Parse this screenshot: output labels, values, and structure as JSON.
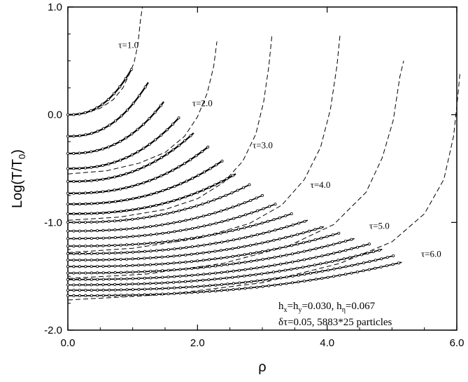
{
  "chart_data": {
    "type": "scatter",
    "title": "",
    "xlabel": "ρ",
    "ylabel_main": "Log(T/T",
    "ylabel_sub": "0",
    "ylabel_close": ")",
    "xlim": [
      0.0,
      6.0
    ],
    "ylim": [
      -2.0,
      1.0
    ],
    "xticks": [
      "0.0",
      "2.0",
      "4.0",
      "6.0"
    ],
    "yticks": [
      "1.0",
      "0.0",
      "-1.0",
      "-2.0"
    ],
    "grid": false,
    "parameters": {
      "line1_a": "h",
      "line1_a_sub": "x",
      "line1_b": "=h",
      "line1_b_sub": "y",
      "line1_c": "=0.030, h",
      "line1_c_sub": "η",
      "line1_d": "=0.067",
      "line2": "δτ=0.05, 5883*25 particles"
    },
    "series": [
      {
        "name": "τ=1.0",
        "label": "τ=1.0",
        "analytic": true,
        "points": [
          [
            0,
            0.0
          ],
          [
            0.3,
            0.02
          ],
          [
            0.5,
            0.06
          ],
          [
            0.7,
            0.14
          ],
          [
            0.85,
            0.25
          ],
          [
            0.95,
            0.38
          ],
          [
            1.02,
            0.48
          ],
          [
            1.08,
            0.65
          ],
          [
            1.12,
            0.88
          ],
          [
            1.15,
            1.0
          ]
        ]
      },
      {
        "name": "τ=2.0",
        "label": "τ=2.0",
        "analytic": true,
        "points": [
          [
            0,
            -0.55
          ],
          [
            0.6,
            -0.52
          ],
          [
            1.1,
            -0.45
          ],
          [
            1.5,
            -0.35
          ],
          [
            1.8,
            -0.2
          ],
          [
            2.0,
            -0.02
          ],
          [
            2.15,
            0.2
          ],
          [
            2.25,
            0.45
          ],
          [
            2.3,
            0.68
          ]
        ]
      },
      {
        "name": "τ=3.0",
        "label": "τ=3.0",
        "analytic": true,
        "points": [
          [
            0,
            -0.98
          ],
          [
            0.8,
            -0.95
          ],
          [
            1.5,
            -0.88
          ],
          [
            2.0,
            -0.78
          ],
          [
            2.4,
            -0.63
          ],
          [
            2.7,
            -0.43
          ],
          [
            2.9,
            -0.18
          ],
          [
            3.02,
            0.12
          ],
          [
            3.1,
            0.45
          ],
          [
            3.15,
            0.75
          ]
        ]
      },
      {
        "name": "τ=4.0",
        "label": "τ=4.0",
        "analytic": true,
        "points": [
          [
            0,
            -1.28
          ],
          [
            1.0,
            -1.24
          ],
          [
            2.0,
            -1.15
          ],
          [
            2.8,
            -1.01
          ],
          [
            3.3,
            -0.84
          ],
          [
            3.65,
            -0.6
          ],
          [
            3.9,
            -0.3
          ],
          [
            4.05,
            0.05
          ],
          [
            4.15,
            0.45
          ],
          [
            4.2,
            0.75
          ]
        ]
      },
      {
        "name": "τ=5.0",
        "label": "τ=5.0",
        "analytic": true,
        "points": [
          [
            0,
            -1.52
          ],
          [
            1.2,
            -1.48
          ],
          [
            2.4,
            -1.38
          ],
          [
            3.4,
            -1.22
          ],
          [
            4.1,
            -1.02
          ],
          [
            4.6,
            -0.72
          ],
          [
            4.85,
            -0.4
          ],
          [
            5.02,
            -0.05
          ],
          [
            5.12,
            0.35
          ],
          [
            5.18,
            0.5
          ]
        ]
      },
      {
        "name": "τ=6.0",
        "label": "τ=6.0",
        "analytic": true,
        "points": [
          [
            0,
            -1.72
          ],
          [
            1.5,
            -1.67
          ],
          [
            3.0,
            -1.56
          ],
          [
            4.2,
            -1.38
          ],
          [
            5.0,
            -1.18
          ],
          [
            5.5,
            -0.92
          ],
          [
            5.8,
            -0.6
          ],
          [
            5.95,
            -0.2
          ],
          [
            6.02,
            0.2
          ],
          [
            6.05,
            0.4
          ]
        ]
      }
    ],
    "particle_curves": [
      {
        "y0": 0.0,
        "x_end": 0.98,
        "y_end": 0.42
      },
      {
        "y0": -0.2,
        "x_end": 1.24,
        "y_end": 0.3
      },
      {
        "y0": -0.36,
        "x_end": 1.48,
        "y_end": 0.12
      },
      {
        "y0": -0.5,
        "x_end": 1.71,
        "y_end": -0.03
      },
      {
        "y0": -0.62,
        "x_end": 1.94,
        "y_end": -0.17
      },
      {
        "y0": -0.73,
        "x_end": 2.16,
        "y_end": -0.3
      },
      {
        "y0": -0.83,
        "x_end": 2.38,
        "y_end": -0.43
      },
      {
        "y0": -0.92,
        "x_end": 2.59,
        "y_end": -0.55
      },
      {
        "y0": -1.0,
        "x_end": 2.8,
        "y_end": -0.65
      },
      {
        "y0": -1.08,
        "x_end": 3.0,
        "y_end": -0.75
      },
      {
        "y0": -1.15,
        "x_end": 3.2,
        "y_end": -0.83
      },
      {
        "y0": -1.22,
        "x_end": 3.45,
        "y_end": -0.92
      },
      {
        "y0": -1.29,
        "x_end": 3.7,
        "y_end": -0.98
      },
      {
        "y0": -1.35,
        "x_end": 3.95,
        "y_end": -1.04
      },
      {
        "y0": -1.41,
        "x_end": 4.18,
        "y_end": -1.1
      },
      {
        "y0": -1.47,
        "x_end": 4.42,
        "y_end": -1.15
      },
      {
        "y0": -1.53,
        "x_end": 4.65,
        "y_end": -1.2
      },
      {
        "y0": -1.58,
        "x_end": 4.85,
        "y_end": -1.25
      },
      {
        "y0": -1.63,
        "x_end": 5.02,
        "y_end": -1.31
      },
      {
        "y0": -1.68,
        "x_end": 5.15,
        "y_end": -1.37
      }
    ]
  }
}
